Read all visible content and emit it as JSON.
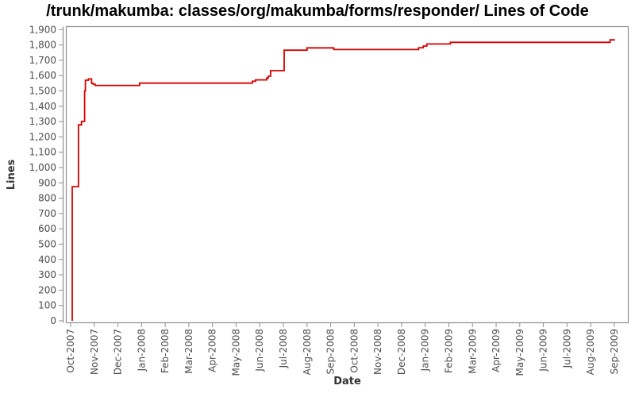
{
  "chart_data": {
    "type": "line",
    "title": "/trunk/makumba: classes/org/makumba/forms/responder/ Lines of Code",
    "xlabel": "Date",
    "ylabel": "Lines",
    "series_name": "Lines of Code",
    "grid": false,
    "legend": false,
    "step": true,
    "line_color": "#d60000",
    "frame_color": "#8e8e8e",
    "tick_label_color": "#4d4d4d",
    "axis_label_color": "#333333",
    "ylim": [
      0,
      1900
    ],
    "y_tick_step": 100,
    "y_tick_labels": [
      "0",
      "100",
      "200",
      "300",
      "400",
      "500",
      "600",
      "700",
      "800",
      "900",
      "1,000",
      "1,100",
      "1,200",
      "1,300",
      "1,400",
      "1,500",
      "1,600",
      "1,700",
      "1,800",
      "1,900"
    ],
    "x_tick_labels": [
      "Oct-2007",
      "Nov-2007",
      "Dec-2007",
      "Jan-2008",
      "Feb-2008",
      "Mar-2008",
      "Apr-2008",
      "May-2008",
      "Jun-2008",
      "Jul-2008",
      "Aug-2008",
      "Sep-2008",
      "Oct-2008",
      "Nov-2008",
      "Dec-2008",
      "Jan-2009",
      "Feb-2009",
      "Mar-2009",
      "Apr-2009",
      "May-2009",
      "Jun-2009",
      "Jul-2009",
      "Aug-2009",
      "Sep-2009"
    ],
    "points": [
      [
        "2007-10-03",
        0
      ],
      [
        "2007-10-03",
        875
      ],
      [
        "2007-10-11",
        875
      ],
      [
        "2007-10-11",
        1278
      ],
      [
        "2007-10-15",
        1278
      ],
      [
        "2007-10-15",
        1301
      ],
      [
        "2007-10-19",
        1301
      ],
      [
        "2007-10-19",
        1500
      ],
      [
        "2007-10-20",
        1500
      ],
      [
        "2007-10-20",
        1570
      ],
      [
        "2007-10-24",
        1570
      ],
      [
        "2007-10-24",
        1578
      ],
      [
        "2007-10-28",
        1578
      ],
      [
        "2007-10-28",
        1549
      ],
      [
        "2007-10-30",
        1549
      ],
      [
        "2007-10-30",
        1544
      ],
      [
        "2007-11-02",
        1544
      ],
      [
        "2007-11-02",
        1536
      ],
      [
        "2007-12-29",
        1536
      ],
      [
        "2007-12-29",
        1551
      ],
      [
        "2008-05-22",
        1551
      ],
      [
        "2008-05-22",
        1563
      ],
      [
        "2008-05-26",
        1563
      ],
      [
        "2008-05-26",
        1572
      ],
      [
        "2008-06-10",
        1572
      ],
      [
        "2008-06-10",
        1584
      ],
      [
        "2008-06-12",
        1584
      ],
      [
        "2008-06-12",
        1596
      ],
      [
        "2008-06-15",
        1596
      ],
      [
        "2008-06-15",
        1632
      ],
      [
        "2008-07-02",
        1632
      ],
      [
        "2008-07-02",
        1766
      ],
      [
        "2008-08-01",
        1766
      ],
      [
        "2008-08-01",
        1781
      ],
      [
        "2008-09-05",
        1781
      ],
      [
        "2008-09-05",
        1770
      ],
      [
        "2008-12-23",
        1770
      ],
      [
        "2008-12-23",
        1782
      ],
      [
        "2008-12-29",
        1782
      ],
      [
        "2008-12-29",
        1793
      ],
      [
        "2009-01-03",
        1793
      ],
      [
        "2009-01-03",
        1806
      ],
      [
        "2009-02-03",
        1806
      ],
      [
        "2009-02-03",
        1817
      ],
      [
        "2009-08-26",
        1817
      ],
      [
        "2009-08-26",
        1833
      ],
      [
        "2009-09-02",
        1833
      ]
    ]
  }
}
